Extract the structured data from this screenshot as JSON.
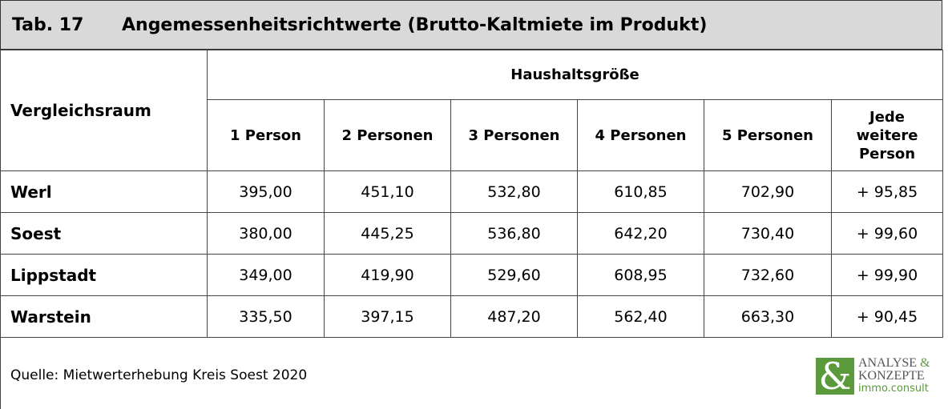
{
  "title": {
    "number": "Tab. 17",
    "text": "Angemessenheitsrichtwerte (Brutto-Kaltmiete im Produkt)"
  },
  "table": {
    "row_header": "Vergleichsraum",
    "group_header": "Haushaltsgröße",
    "columns": [
      "1 Person",
      "2 Personen",
      "3 Personen",
      "4 Personen",
      "5 Personen",
      "Jede weitere Person"
    ],
    "rows": [
      [
        "Werl",
        "395,00",
        "451,10",
        "532,80",
        "610,85",
        "702,90",
        "+ 95,85"
      ],
      [
        "Soest",
        "380,00",
        "445,25",
        "536,80",
        "642,20",
        "730,40",
        "+ 99,60"
      ],
      [
        "Lippstadt",
        "349,00",
        "419,90",
        "529,60",
        "608,95",
        "732,60",
        "+ 99,90"
      ],
      [
        "Warstein",
        "335,50",
        "397,15",
        "487,20",
        "562,40",
        "663,30",
        "+ 90,45"
      ]
    ]
  },
  "footer": {
    "source": "Quelle: Mietwerterhebung Kreis Soest 2020"
  },
  "logo": {
    "symbol": "&",
    "line1": "ANALYSE",
    "line1_amp": "&",
    "line2": "KONZEPTE",
    "line3": "immo.consult"
  }
}
